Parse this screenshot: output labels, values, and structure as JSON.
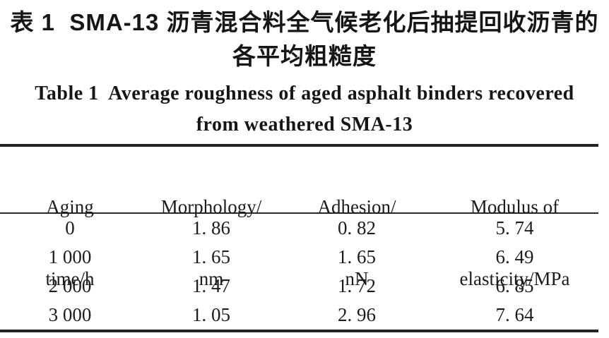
{
  "caption": {
    "zh_line1": "表 1  SMA-13 沥青混合料全气候老化后抽提回收沥青的",
    "zh_line2": "各平均粗糙度",
    "en_line1": "Table 1  Average roughness of aged asphalt binders recovered",
    "en_line2": "from weathered SMA-13"
  },
  "table": {
    "columns": [
      {
        "id": "aging-time",
        "line1": "Aging",
        "line2": "time/h"
      },
      {
        "id": "morphology",
        "line1": "Morphology/",
        "line2": "nm"
      },
      {
        "id": "adhesion",
        "line1": "Adhesion/",
        "line2": "nN"
      },
      {
        "id": "modulus",
        "line1": "Modulus of",
        "line2": "elasticity/MPa"
      }
    ],
    "rows": [
      [
        "0",
        "1. 86",
        "0. 82",
        "5. 74"
      ],
      [
        "1 000",
        "1. 65",
        "1. 65",
        "6. 49"
      ],
      [
        "2 000",
        "1. 47",
        "1. 72",
        "6. 85"
      ],
      [
        "3 000",
        "1. 05",
        "2. 96",
        "7. 64"
      ]
    ],
    "values": {
      "aging_time_h": [
        0,
        1000,
        2000,
        3000
      ],
      "morphology_nm": [
        1.86,
        1.65,
        1.47,
        1.05
      ],
      "adhesion_nN": [
        0.82,
        1.65,
        1.72,
        2.96
      ],
      "modulus_of_elasticity_MPa": [
        5.74,
        6.49,
        6.85,
        7.64
      ]
    },
    "style": {
      "text_color": "#1c1c1c",
      "rule_color": "#232323",
      "background": "#ffffff"
    }
  }
}
